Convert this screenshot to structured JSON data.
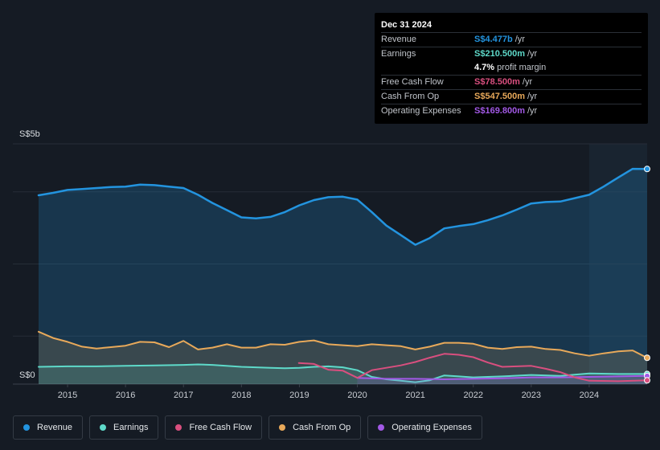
{
  "chart_data": {
    "type": "area",
    "currency_labels": {
      "top": "S$5b",
      "bottom": "S$0"
    },
    "ylim": [
      0,
      5
    ],
    "xlim": [
      2014.5,
      2025.0
    ],
    "x_ticks": [
      "2015",
      "2016",
      "2017",
      "2018",
      "2019",
      "2020",
      "2021",
      "2022",
      "2023",
      "2024"
    ],
    "x_tick_values": [
      2015,
      2016,
      2017,
      2018,
      2019,
      2020,
      2021,
      2022,
      2023,
      2024
    ],
    "forecast_start": 2024.0,
    "series": [
      {
        "name": "Revenue",
        "color": "#2394df",
        "fill": true,
        "points": [
          [
            2014.5,
            3.93
          ],
          [
            2014.75,
            3.98
          ],
          [
            2015.0,
            4.04
          ],
          [
            2015.25,
            4.06
          ],
          [
            2015.5,
            4.08
          ],
          [
            2015.75,
            4.1
          ],
          [
            2016.0,
            4.11
          ],
          [
            2016.25,
            4.15
          ],
          [
            2016.5,
            4.14
          ],
          [
            2016.75,
            4.11
          ],
          [
            2017.0,
            4.08
          ],
          [
            2017.25,
            3.94
          ],
          [
            2017.5,
            3.77
          ],
          [
            2017.75,
            3.62
          ],
          [
            2018.0,
            3.47
          ],
          [
            2018.25,
            3.45
          ],
          [
            2018.5,
            3.48
          ],
          [
            2018.75,
            3.58
          ],
          [
            2019.0,
            3.72
          ],
          [
            2019.25,
            3.83
          ],
          [
            2019.5,
            3.89
          ],
          [
            2019.75,
            3.9
          ],
          [
            2020.0,
            3.84
          ],
          [
            2020.25,
            3.58
          ],
          [
            2020.5,
            3.3
          ],
          [
            2020.75,
            3.1
          ],
          [
            2021.0,
            2.9
          ],
          [
            2021.25,
            3.04
          ],
          [
            2021.5,
            3.24
          ],
          [
            2021.75,
            3.29
          ],
          [
            2022.0,
            3.33
          ],
          [
            2022.25,
            3.41
          ],
          [
            2022.5,
            3.51
          ],
          [
            2022.75,
            3.63
          ],
          [
            2023.0,
            3.76
          ],
          [
            2023.25,
            3.79
          ],
          [
            2023.5,
            3.8
          ],
          [
            2023.75,
            3.87
          ],
          [
            2024.0,
            3.94
          ],
          [
            2024.25,
            4.11
          ],
          [
            2024.5,
            4.3
          ],
          [
            2024.75,
            4.48
          ],
          [
            2025.0,
            4.477
          ]
        ]
      },
      {
        "name": "Earnings",
        "color": "#5ed9c9",
        "fill": true,
        "points": [
          [
            2014.5,
            0.36
          ],
          [
            2015.0,
            0.37
          ],
          [
            2015.5,
            0.37
          ],
          [
            2016.0,
            0.38
          ],
          [
            2016.5,
            0.39
          ],
          [
            2017.0,
            0.4
          ],
          [
            2017.25,
            0.41
          ],
          [
            2017.5,
            0.4
          ],
          [
            2018.0,
            0.36
          ],
          [
            2018.5,
            0.34
          ],
          [
            2018.75,
            0.33
          ],
          [
            2019.0,
            0.34
          ],
          [
            2019.25,
            0.36
          ],
          [
            2019.5,
            0.37
          ],
          [
            2019.75,
            0.35
          ],
          [
            2020.0,
            0.29
          ],
          [
            2020.25,
            0.15
          ],
          [
            2020.5,
            0.1
          ],
          [
            2020.75,
            0.07
          ],
          [
            2021.0,
            0.04
          ],
          [
            2021.25,
            0.08
          ],
          [
            2021.5,
            0.18
          ],
          [
            2021.75,
            0.16
          ],
          [
            2022.0,
            0.14
          ],
          [
            2022.5,
            0.16
          ],
          [
            2023.0,
            0.19
          ],
          [
            2023.5,
            0.17
          ],
          [
            2024.0,
            0.22
          ],
          [
            2024.5,
            0.21
          ],
          [
            2025.0,
            0.2105
          ]
        ]
      },
      {
        "name": "Free Cash Flow",
        "color": "#d94f7f",
        "fill": false,
        "points": [
          [
            2018.99,
            0.44
          ],
          [
            2019.25,
            0.42
          ],
          [
            2019.5,
            0.3
          ],
          [
            2019.75,
            0.28
          ],
          [
            2020.0,
            0.13
          ],
          [
            2020.25,
            0.29
          ],
          [
            2020.5,
            0.34
          ],
          [
            2020.75,
            0.39
          ],
          [
            2021.0,
            0.46
          ],
          [
            2021.25,
            0.55
          ],
          [
            2021.5,
            0.63
          ],
          [
            2021.75,
            0.61
          ],
          [
            2022.0,
            0.56
          ],
          [
            2022.25,
            0.45
          ],
          [
            2022.5,
            0.36
          ],
          [
            2022.75,
            0.37
          ],
          [
            2023.0,
            0.38
          ],
          [
            2023.25,
            0.32
          ],
          [
            2023.5,
            0.25
          ],
          [
            2023.75,
            0.14
          ],
          [
            2024.0,
            0.07
          ],
          [
            2024.5,
            0.06
          ],
          [
            2025.0,
            0.0785
          ]
        ]
      },
      {
        "name": "Cash From Op",
        "color": "#e8a95a",
        "fill": true,
        "points": [
          [
            2014.5,
            1.09
          ],
          [
            2014.75,
            0.96
          ],
          [
            2015.0,
            0.88
          ],
          [
            2015.25,
            0.78
          ],
          [
            2015.5,
            0.74
          ],
          [
            2015.75,
            0.77
          ],
          [
            2016.0,
            0.8
          ],
          [
            2016.25,
            0.88
          ],
          [
            2016.5,
            0.87
          ],
          [
            2016.75,
            0.77
          ],
          [
            2017.0,
            0.9
          ],
          [
            2017.25,
            0.72
          ],
          [
            2017.5,
            0.76
          ],
          [
            2017.75,
            0.83
          ],
          [
            2018.0,
            0.76
          ],
          [
            2018.25,
            0.76
          ],
          [
            2018.5,
            0.83
          ],
          [
            2018.75,
            0.82
          ],
          [
            2019.0,
            0.88
          ],
          [
            2019.25,
            0.91
          ],
          [
            2019.5,
            0.83
          ],
          [
            2019.75,
            0.81
          ],
          [
            2020.0,
            0.79
          ],
          [
            2020.25,
            0.83
          ],
          [
            2020.5,
            0.81
          ],
          [
            2020.75,
            0.79
          ],
          [
            2021.0,
            0.72
          ],
          [
            2021.25,
            0.78
          ],
          [
            2021.5,
            0.86
          ],
          [
            2021.75,
            0.86
          ],
          [
            2022.0,
            0.84
          ],
          [
            2022.25,
            0.76
          ],
          [
            2022.5,
            0.73
          ],
          [
            2022.75,
            0.77
          ],
          [
            2023.0,
            0.78
          ],
          [
            2023.25,
            0.73
          ],
          [
            2023.5,
            0.71
          ],
          [
            2023.75,
            0.64
          ],
          [
            2024.0,
            0.59
          ],
          [
            2024.25,
            0.64
          ],
          [
            2024.5,
            0.68
          ],
          [
            2024.75,
            0.7
          ],
          [
            2025.0,
            0.5475
          ]
        ]
      },
      {
        "name": "Operating Expenses",
        "color": "#a259e6",
        "fill": true,
        "points": [
          [
            2020.0,
            0.13
          ],
          [
            2020.5,
            0.11
          ],
          [
            2021.0,
            0.11
          ],
          [
            2021.5,
            0.1
          ],
          [
            2022.0,
            0.11
          ],
          [
            2022.5,
            0.12
          ],
          [
            2023.0,
            0.14
          ],
          [
            2023.5,
            0.14
          ],
          [
            2024.0,
            0.15
          ],
          [
            2024.5,
            0.16
          ],
          [
            2025.0,
            0.1698
          ]
        ]
      }
    ]
  },
  "tooltip": {
    "date": "Dec 31 2024",
    "rows": [
      {
        "label": "Revenue",
        "value": "S$4.477b",
        "unit": "/yr",
        "color": "#2394df"
      },
      {
        "label": "Earnings",
        "value": "S$210.500m",
        "unit": "/yr",
        "color": "#5ed9c9"
      },
      {
        "label": "",
        "value": "4.7%",
        "unit": "profit margin",
        "color": "#ffffff"
      },
      {
        "label": "Free Cash Flow",
        "value": "S$78.500m",
        "unit": "/yr",
        "color": "#d94f7f"
      },
      {
        "label": "Cash From Op",
        "value": "S$547.500m",
        "unit": "/yr",
        "color": "#e8a95a"
      },
      {
        "label": "Operating Expenses",
        "value": "S$169.800m",
        "unit": "/yr",
        "color": "#a259e6"
      }
    ]
  },
  "legend": [
    {
      "label": "Revenue",
      "color": "#2394df"
    },
    {
      "label": "Earnings",
      "color": "#5ed9c9"
    },
    {
      "label": "Free Cash Flow",
      "color": "#d94f7f"
    },
    {
      "label": "Cash From Op",
      "color": "#e8a95a"
    },
    {
      "label": "Operating Expenses",
      "color": "#a259e6"
    }
  ]
}
